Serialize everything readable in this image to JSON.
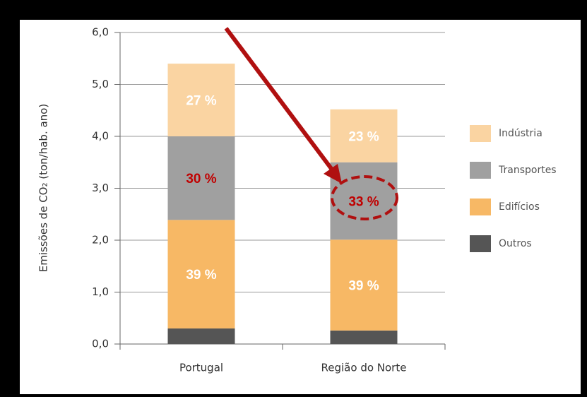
{
  "chart_data": {
    "type": "stacked_bar",
    "y_label": "Emissões de CO₂ (ton/hab. ano)",
    "categories": [
      "Portugal",
      "Região do Norte"
    ],
    "series": [
      {
        "name": "Outros",
        "color": "#555555",
        "values": [
          0.3,
          0.26
        ]
      },
      {
        "name": "Edifícios",
        "color": "#f7b865",
        "values": [
          2.09,
          1.75
        ],
        "percent_labels": [
          "39 %",
          "39 %"
        ],
        "label_color": "#ffffff"
      },
      {
        "name": "Transportes",
        "color": "#a0a0a0",
        "values": [
          1.61,
          1.49
        ],
        "percent_labels": [
          "30 %",
          "33 %"
        ],
        "label_color": "#c00000"
      },
      {
        "name": "Indústria",
        "color": "#fad4a2",
        "values": [
          1.4,
          1.02
        ],
        "percent_labels": [
          "27 %",
          "23 %"
        ],
        "label_color": "#ffffff"
      }
    ],
    "ylim": [
      0,
      6
    ],
    "yticks": [
      {
        "value": 0,
        "label": "0,0"
      },
      {
        "value": 1,
        "label": "1,0"
      },
      {
        "value": 2,
        "label": "2,0"
      },
      {
        "value": 3,
        "label": "3,0"
      },
      {
        "value": 4,
        "label": "4,0"
      },
      {
        "value": 5,
        "label": "5,0"
      },
      {
        "value": 6,
        "label": "6,0"
      }
    ],
    "grid": true,
    "legend": "right"
  }
}
